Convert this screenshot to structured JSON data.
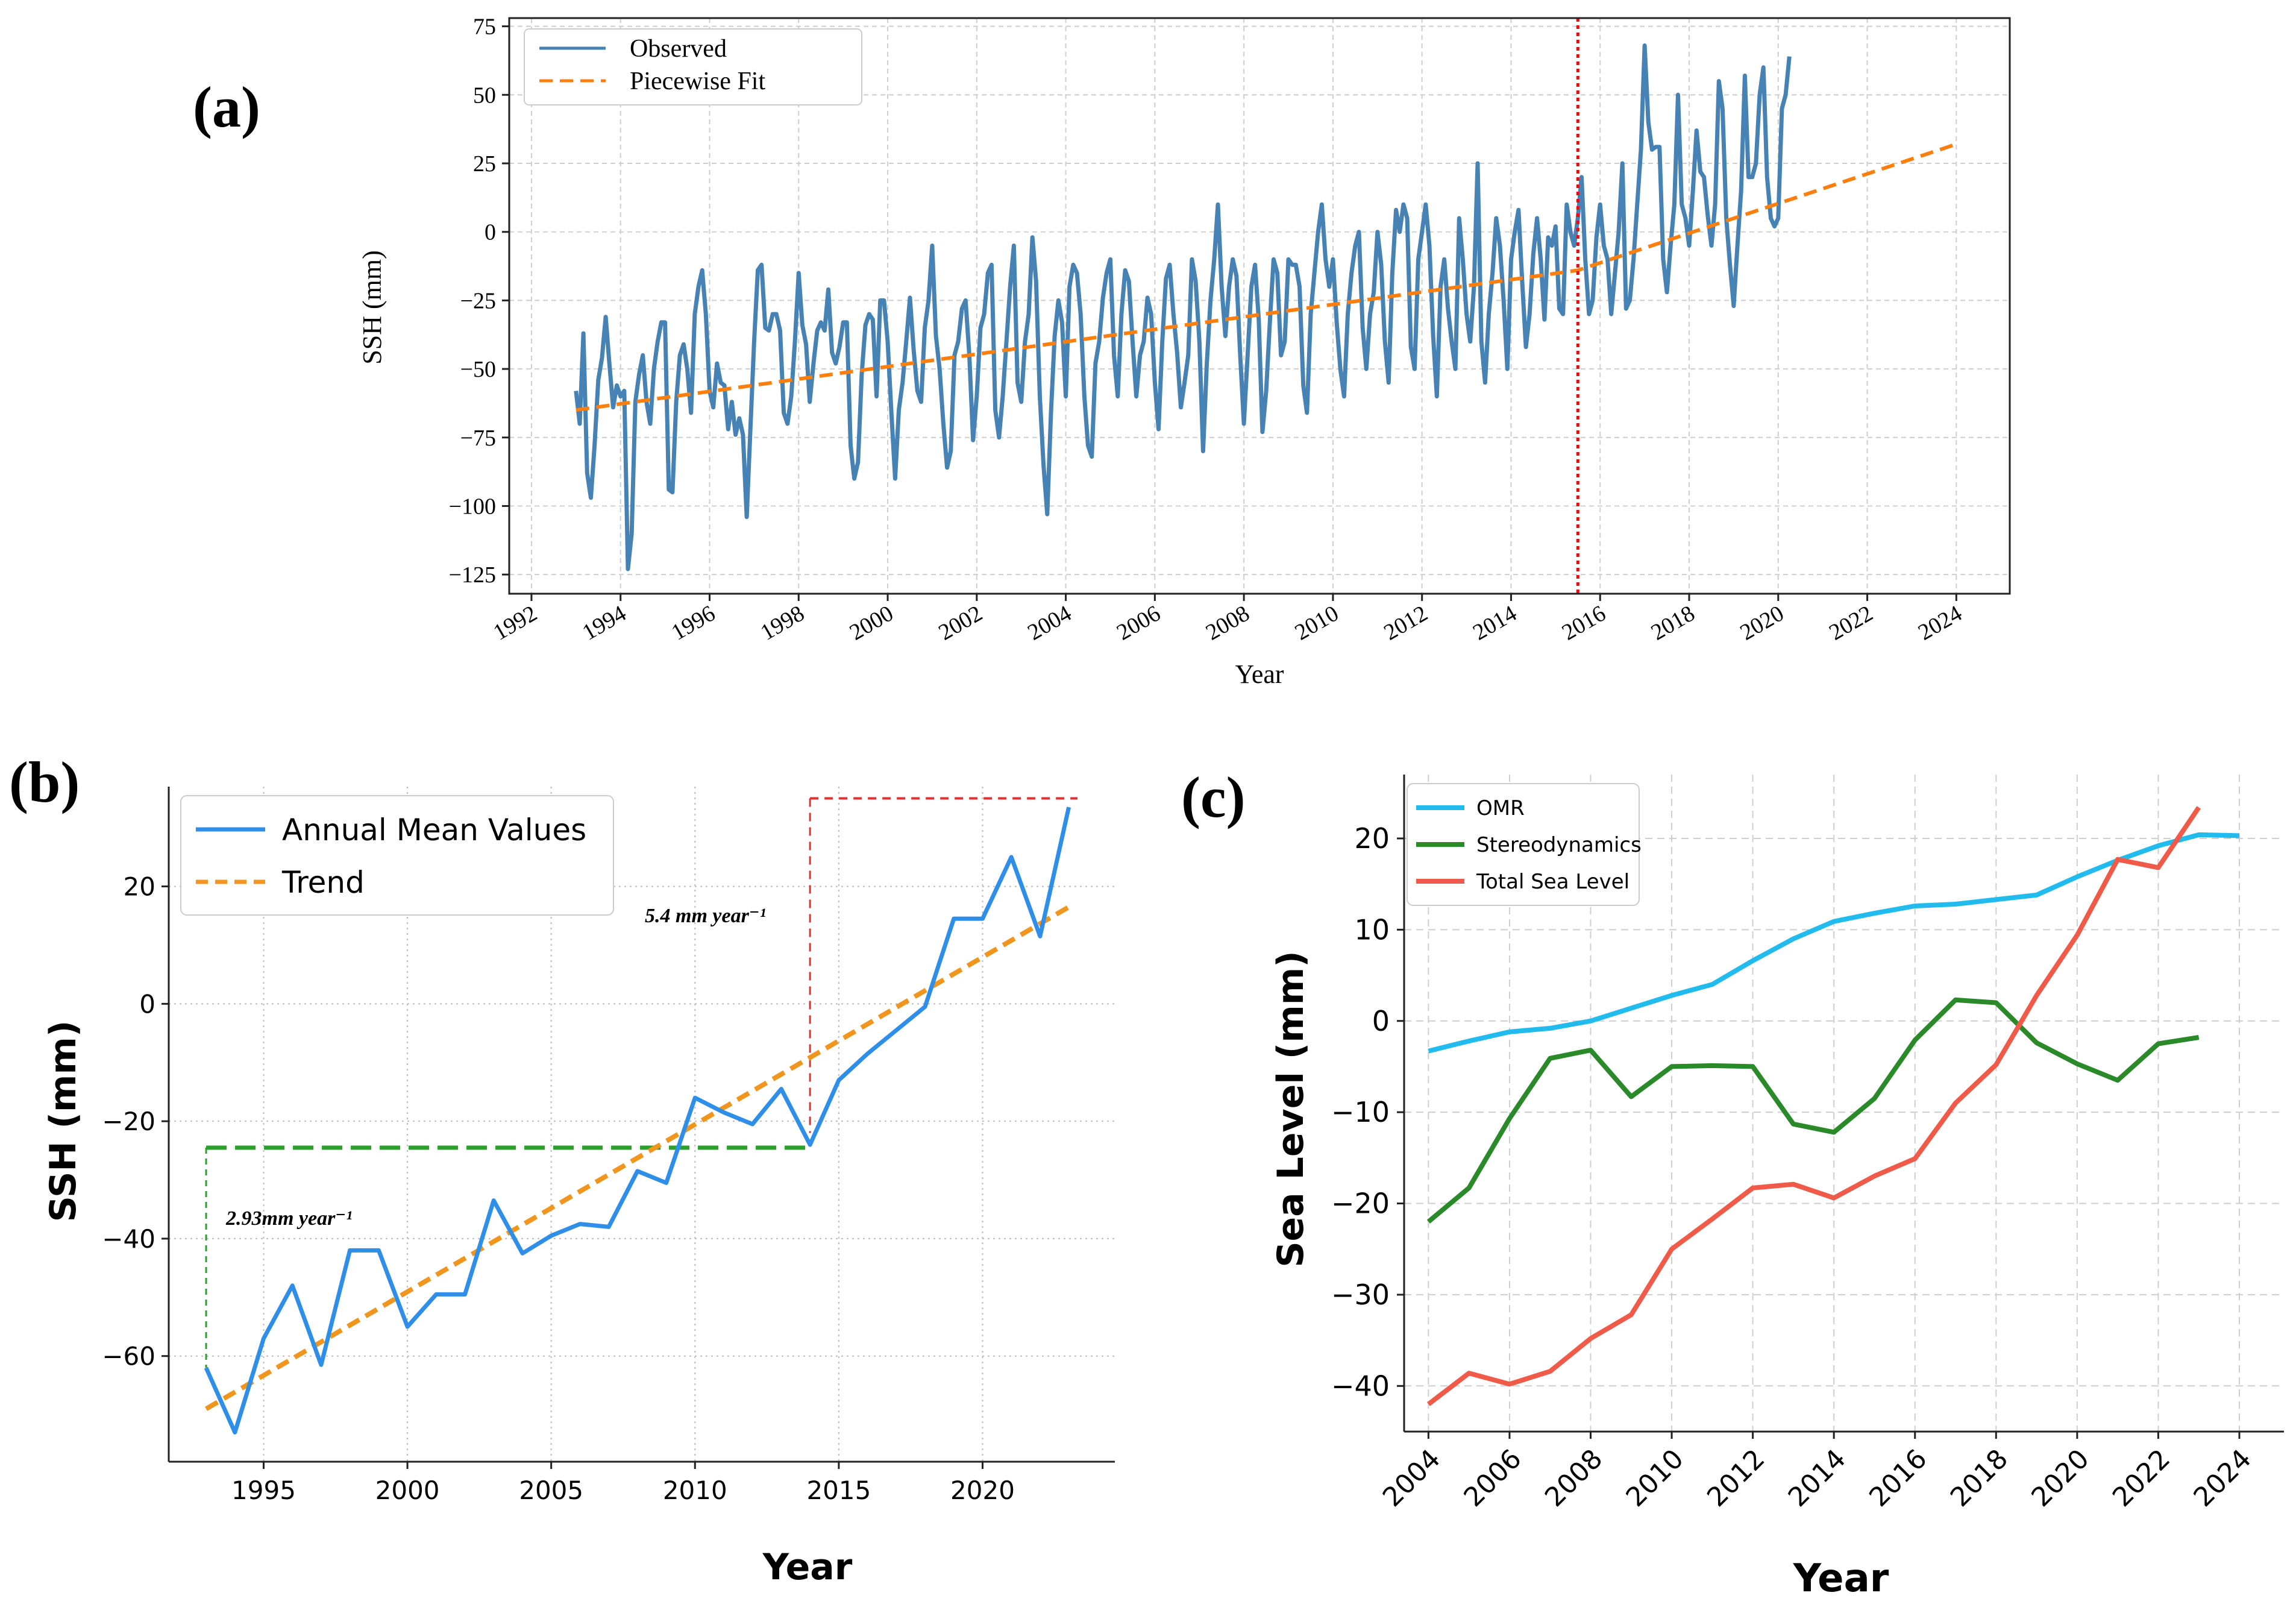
{
  "colors": {
    "observed": "#4682b4",
    "piecewise": "#ff7f0e",
    "breakpoint": "#e01010",
    "annual": "#2f8fe8",
    "trend_b": "#f0961e",
    "green_guide": "#2ca02c",
    "red_guide": "#e03030",
    "omr": "#22bbee",
    "stereo": "#2a8a2a",
    "total": "#f05a48"
  },
  "chart_data": [
    {
      "panel_label": "(a)",
      "type": "line",
      "xlabel": "Year",
      "ylabel": "SSH (mm)",
      "xlim": [
        1991.5,
        2025.2
      ],
      "ylim": [
        -132,
        78
      ],
      "xticks": [
        1992,
        1994,
        1996,
        1998,
        2000,
        2002,
        2004,
        2006,
        2008,
        2010,
        2012,
        2014,
        2016,
        2018,
        2020,
        2022,
        2024
      ],
      "yticks": [
        75,
        50,
        25,
        0,
        -25,
        -50,
        -75,
        -100,
        -125
      ],
      "ytick_labels": [
        "75",
        "50",
        "25",
        "0",
        "−25",
        "−50",
        "−75",
        "−100",
        "−125"
      ],
      "legend": [
        "Observed",
        "Piecewise Fit"
      ],
      "breakpoint_year": 2015.5,
      "series": [
        {
          "name": "Observed",
          "x_start": 1993.0,
          "x_step": 0.0833333,
          "values": [
            -58,
            -70,
            -37,
            -88,
            -97,
            -78,
            -54,
            -46,
            -31,
            -48,
            -64,
            -56,
            -60,
            -58,
            -123,
            -110,
            -62,
            -52,
            -45,
            -62,
            -70,
            -50,
            -40,
            -33,
            -33,
            -94,
            -95,
            -62,
            -45,
            -41,
            -50,
            -66,
            -30,
            -20,
            -14,
            -30,
            -58,
            -64,
            -48,
            -55,
            -56,
            -72,
            -62,
            -74,
            -68,
            -74,
            -104,
            -72,
            -40,
            -14,
            -12,
            -35,
            -36,
            -30,
            -30,
            -36,
            -66,
            -70,
            -60,
            -40,
            -15,
            -34,
            -41,
            -62,
            -48,
            -36,
            -33,
            -36,
            -21,
            -44,
            -48,
            -42,
            -33,
            -33,
            -78,
            -90,
            -84,
            -52,
            -34,
            -30,
            -32,
            -60,
            -25,
            -25,
            -40,
            -66,
            -90,
            -65,
            -55,
            -40,
            -24,
            -43,
            -58,
            -62,
            -35,
            -25,
            -5,
            -38,
            -50,
            -70,
            -86,
            -80,
            -45,
            -40,
            -28,
            -25,
            -45,
            -76,
            -60,
            -35,
            -30,
            -15,
            -12,
            -65,
            -75,
            -60,
            -40,
            -20,
            -5,
            -55,
            -62,
            -40,
            -30,
            -2,
            -18,
            -60,
            -85,
            -103,
            -66,
            -38,
            -25,
            -33,
            -60,
            -20,
            -12,
            -15,
            -30,
            -60,
            -78,
            -82,
            -48,
            -40,
            -24,
            -15,
            -10,
            -45,
            -60,
            -30,
            -14,
            -18,
            -40,
            -60,
            -45,
            -40,
            -24,
            -30,
            -55,
            -72,
            -40,
            -17,
            -12,
            -30,
            -44,
            -64,
            -55,
            -45,
            -10,
            -18,
            -40,
            -80,
            -48,
            -25,
            -10,
            10,
            -20,
            -38,
            -20,
            -10,
            -16,
            -45,
            -70,
            -45,
            -20,
            -12,
            -32,
            -73,
            -58,
            -33,
            -10,
            -15,
            -45,
            -40,
            -10,
            -12,
            -12,
            -20,
            -56,
            -66,
            -30,
            -15,
            0,
            10,
            -10,
            -20,
            -10,
            -33,
            -50,
            -60,
            -30,
            -15,
            -5,
            0,
            -35,
            -50,
            -30,
            -22,
            0,
            -12,
            -40,
            -55,
            -15,
            8,
            0,
            10,
            5,
            -42,
            -50,
            -10,
            0,
            10,
            -5,
            -38,
            -60,
            -20,
            -10,
            -28,
            -40,
            -50,
            5,
            -10,
            -30,
            -40,
            -20,
            25,
            -40,
            -55,
            -30,
            -15,
            5,
            -5,
            -25,
            -50,
            -10,
            0,
            8,
            -18,
            -42,
            -30,
            -8,
            5,
            -10,
            -32,
            -2,
            -5,
            2,
            -28,
            -30,
            10,
            0,
            -5,
            5,
            20,
            -10,
            -30,
            -25,
            -2,
            10,
            -5,
            -10,
            -30,
            -15,
            0,
            25,
            -28,
            -25,
            -10,
            10,
            30,
            68,
            40,
            30,
            31,
            31,
            -10,
            -22,
            -5,
            10,
            50,
            10,
            5,
            -5,
            15,
            37,
            22,
            20,
            6,
            -5,
            10,
            55,
            45,
            5,
            -12,
            -27,
            -5,
            15,
            57,
            20,
            20,
            25,
            50,
            60,
            20,
            5,
            2,
            5,
            45,
            50,
            64
          ]
        },
        {
          "name": "Piecewise Fit",
          "x": [
            1993.0,
            2015.5,
            2024.0
          ],
          "values": [
            -65,
            -14,
            32
          ]
        }
      ]
    },
    {
      "panel_label": "(b)",
      "type": "line",
      "xlabel": "Year",
      "ylabel": "SSH (mm)",
      "xlim": [
        1991.7,
        2024.6
      ],
      "ylim": [
        -78,
        37
      ],
      "xticks": [
        1995,
        2000,
        2005,
        2010,
        2015,
        2020
      ],
      "yticks": [
        20,
        0,
        -20,
        -40,
        -60
      ],
      "ytick_labels": [
        "20",
        "0",
        "−20",
        "−40",
        "−60"
      ],
      "legend": [
        "Annual Mean Values",
        "Trend"
      ],
      "annotation_rate1": "2.93mm year⁻¹",
      "annotation_rate2": "5.4 mm year⁻¹",
      "guides": {
        "green_level": -24.5,
        "green_x": [
          1993,
          2014
        ],
        "red_level": 35,
        "red_x": [
          2014,
          2023.3
        ]
      },
      "series": [
        {
          "name": "Annual Mean Values",
          "x": [
            1993,
            1994,
            1995,
            1996,
            1997,
            1998,
            1999,
            2000,
            2001,
            2002,
            2003,
            2004,
            2005,
            2006,
            2007,
            2008,
            2009,
            2010,
            2011,
            2012,
            2013,
            2014,
            2015,
            2016,
            2017,
            2018,
            2019,
            2020,
            2021,
            2022,
            2023
          ],
          "values": [
            -62,
            -73,
            -57,
            -48,
            -61.5,
            -42,
            -42,
            -55,
            -49.5,
            -49.5,
            -33.5,
            -42.5,
            -39.5,
            -37.5,
            -38,
            -28.5,
            -30.5,
            -16,
            -18.5,
            -20.5,
            -14.5,
            -24,
            -13,
            -8.5,
            -4.5,
            -0.5,
            14.5,
            14.5,
            25,
            11.5,
            33.5
          ]
        },
        {
          "name": "Trend",
          "x": [
            1993,
            2023
          ],
          "values": [
            -69,
            16.5
          ]
        }
      ]
    },
    {
      "panel_label": "(c)",
      "type": "line",
      "xlabel": "Year",
      "ylabel": "Sea Level (mm)",
      "xlim": [
        2003.4,
        2025.1
      ],
      "ylim": [
        -45,
        27
      ],
      "xticks": [
        2004,
        2006,
        2008,
        2010,
        2012,
        2014,
        2016,
        2018,
        2020,
        2022,
        2024
      ],
      "yticks": [
        20,
        10,
        0,
        -10,
        -20,
        -30,
        -40
      ],
      "ytick_labels": [
        "20",
        "10",
        "0",
        "−10",
        "−20",
        "−30",
        "−40"
      ],
      "legend": [
        "OMR",
        "Stereodynamics",
        "Total Sea Level"
      ],
      "series": [
        {
          "name": "OMR",
          "x": [
            2004,
            2005,
            2006,
            2007,
            2008,
            2009,
            2010,
            2011,
            2012,
            2013,
            2014,
            2015,
            2016,
            2017,
            2018,
            2019,
            2020,
            2021,
            2022,
            2023,
            2024
          ],
          "values": [
            -3.3,
            -2.2,
            -1.2,
            -0.8,
            0,
            1.4,
            2.8,
            4,
            6.6,
            9,
            10.9,
            11.8,
            12.6,
            12.8,
            13.3,
            13.8,
            15.8,
            17.6,
            19.2,
            20.4,
            20.3
          ]
        },
        {
          "name": "Stereodynamics",
          "x": [
            2004,
            2005,
            2006,
            2007,
            2008,
            2009,
            2010,
            2011,
            2012,
            2013,
            2014,
            2015,
            2016,
            2017,
            2018,
            2019,
            2020,
            2021,
            2022,
            2023
          ],
          "values": [
            -22,
            -18.3,
            -10.7,
            -4.1,
            -3.2,
            -8.3,
            -5,
            -4.9,
            -5,
            -11.3,
            -12.2,
            -8.5,
            -2.1,
            2.3,
            2,
            -2.4,
            -4.7,
            -6.5,
            -2.5,
            -1.8
          ]
        },
        {
          "name": "Total Sea Level",
          "x": [
            2004,
            2005,
            2006,
            2007,
            2008,
            2009,
            2010,
            2011,
            2012,
            2013,
            2014,
            2015,
            2016,
            2017,
            2018,
            2019,
            2020,
            2021,
            2022,
            2023
          ],
          "values": [
            -42,
            -38.6,
            -39.8,
            -38.4,
            -34.8,
            -32.2,
            -25,
            -21.7,
            -18.3,
            -17.9,
            -19.4,
            -17,
            -15.1,
            -9,
            -4.8,
            2.8,
            9.4,
            17.7,
            16.8,
            23.4
          ]
        }
      ]
    }
  ]
}
